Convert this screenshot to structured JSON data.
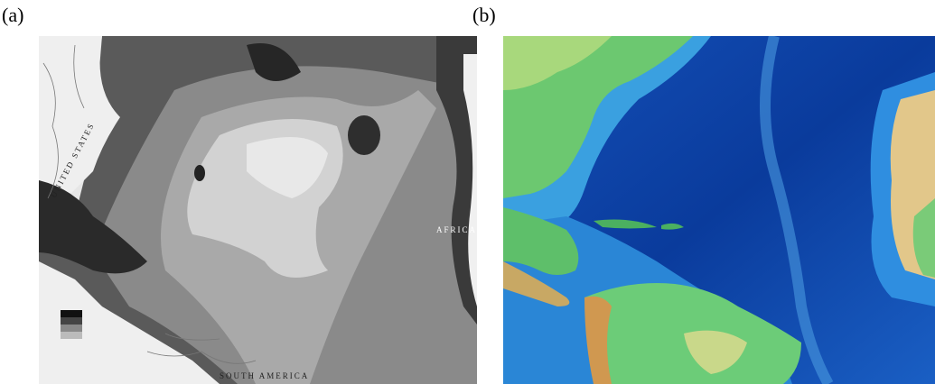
{
  "panels": [
    {
      "label": "(a)",
      "place_labels": [
        "UNITED STATES",
        "SOUTH AMERICA",
        "AFRICA"
      ]
    },
    {
      "label": "(b)"
    }
  ]
}
